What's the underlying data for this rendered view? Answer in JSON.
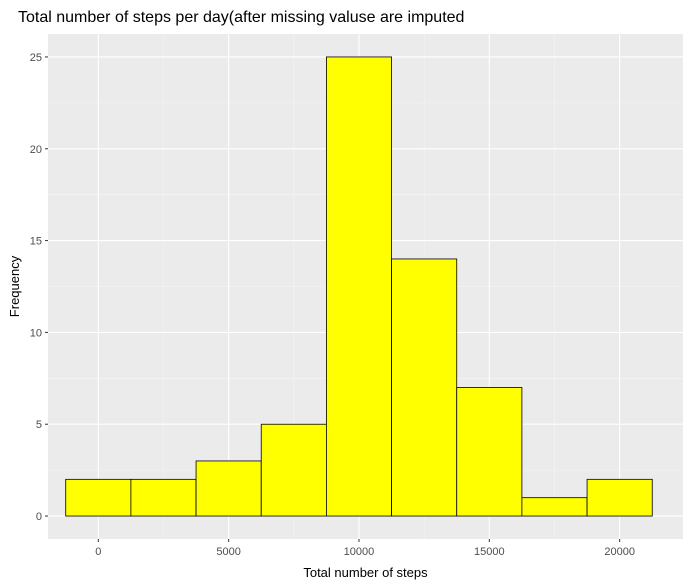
{
  "chart_data": {
    "type": "bar",
    "subtype": "histogram",
    "title": "Total number of steps per day(after missing valuse are imputed",
    "xlabel": "Total number of steps",
    "ylabel": "Frequency",
    "bin_width": 2500,
    "bins": [
      {
        "center": 0,
        "count": 2
      },
      {
        "center": 2500,
        "count": 2
      },
      {
        "center": 5000,
        "count": 3
      },
      {
        "center": 7500,
        "count": 5
      },
      {
        "center": 10000,
        "count": 25
      },
      {
        "center": 12500,
        "count": 14
      },
      {
        "center": 15000,
        "count": 7
      },
      {
        "center": 17500,
        "count": 1
      },
      {
        "center": 20000,
        "count": 2
      }
    ],
    "xlim": [
      -1930,
      22430
    ],
    "ylim": [
      -1.25,
      26.25
    ],
    "x_ticks": [
      0,
      5000,
      10000,
      15000,
      20000
    ],
    "x_tick_labels": [
      "0",
      "5000",
      "10000",
      "15000",
      "20000"
    ],
    "y_ticks": [
      0,
      5,
      10,
      15,
      20,
      25
    ],
    "y_tick_labels": [
      "0",
      "5",
      "10",
      "15",
      "20",
      "25"
    ],
    "grid": true,
    "legend": "none",
    "colors": {
      "bar_fill": "#ffff00",
      "bar_stroke": "#000000",
      "panel_background": "#ebebeb",
      "grid_major": "#ffffff",
      "grid_minor": "#f5f5f5"
    }
  }
}
